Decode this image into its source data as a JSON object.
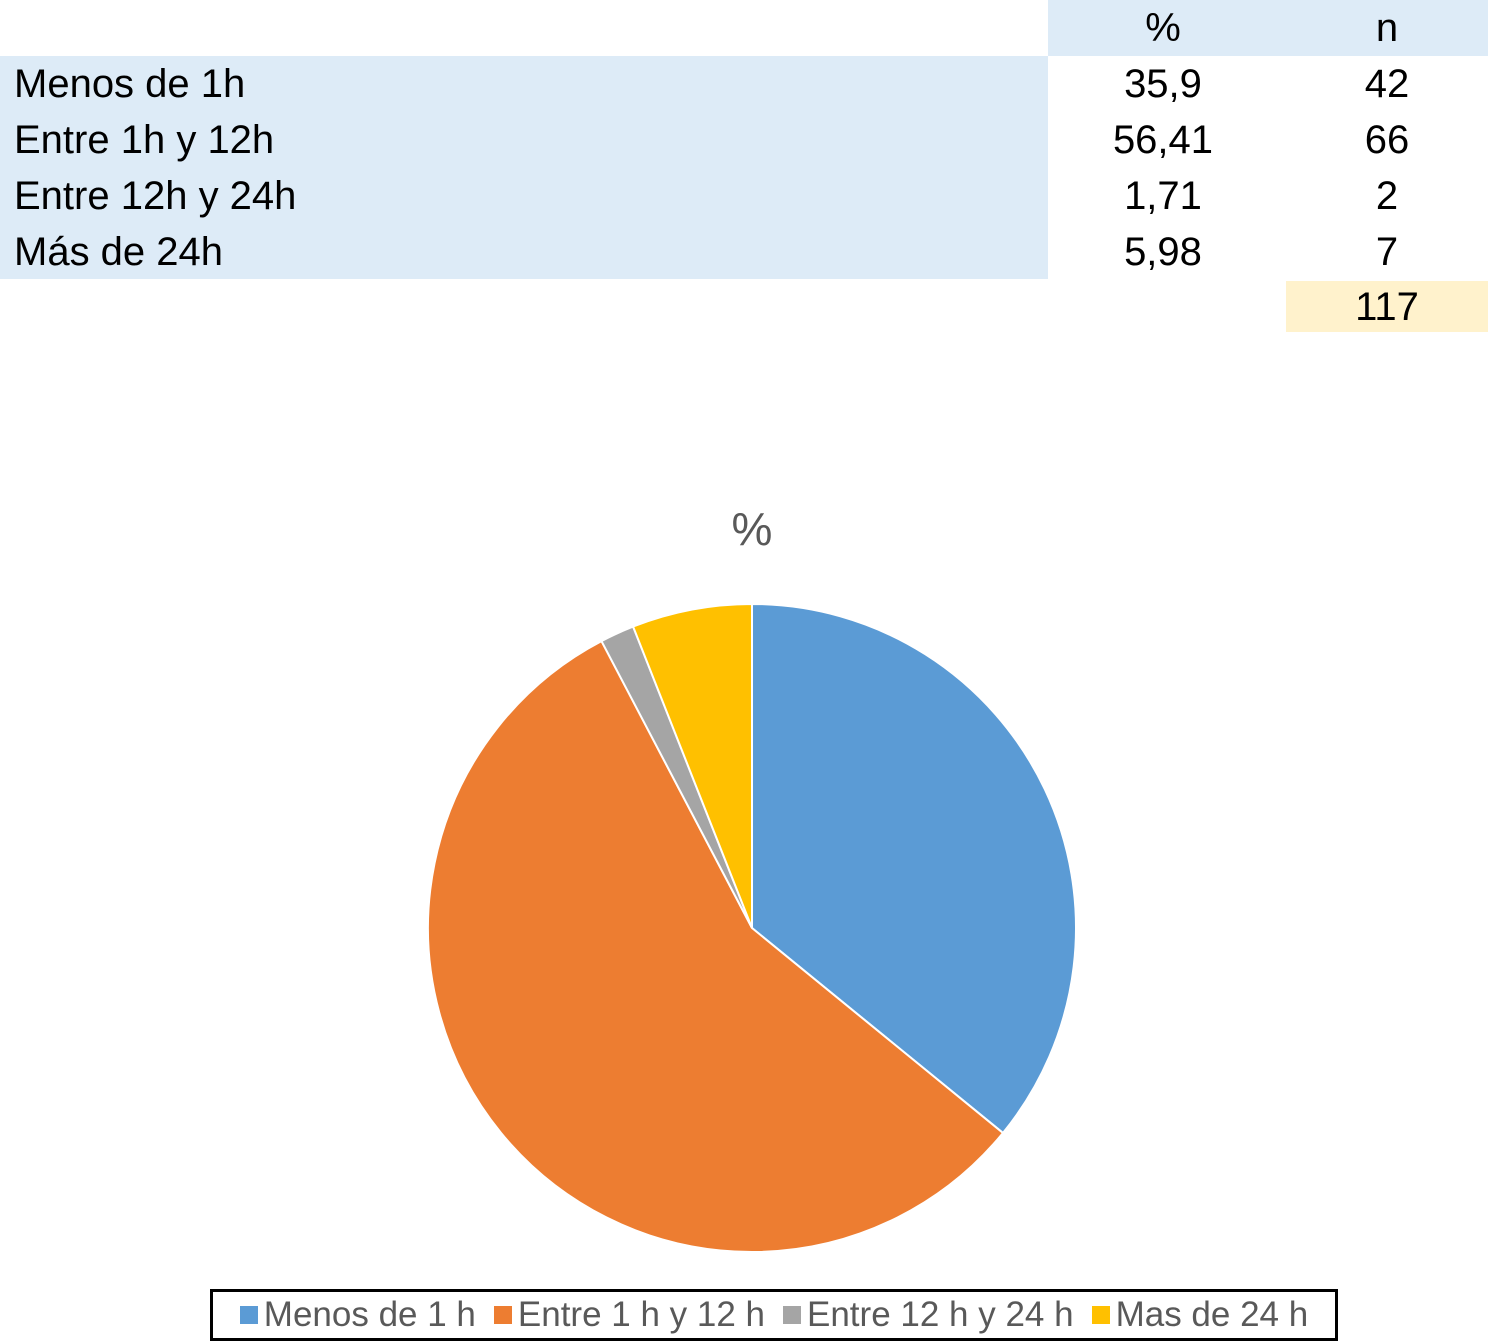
{
  "table": {
    "headers": [
      "%",
      "n"
    ],
    "rows": [
      {
        "label": "Menos de 1h",
        "pct": "35,9",
        "n": "42"
      },
      {
        "label": "Entre 1h y 12h",
        "pct": "56,41",
        "n": "66"
      },
      {
        "label": "Entre 12h y 24h",
        "pct": "1,71",
        "n": "2"
      },
      {
        "label": "Más de 24h",
        "pct": "5,98",
        "n": "7"
      }
    ],
    "total": "117",
    "colors": {
      "header_bg": "#ddebf7",
      "label_bg": "#ddebf7",
      "total_bg": "#fff2cc"
    }
  },
  "chart_data": {
    "type": "pie",
    "title": "%",
    "categories": [
      "Menos de 1 h",
      "Entre 1 h y 12 h",
      "Entre 12 h y 24 h",
      "Mas de 24 h"
    ],
    "values": [
      35.9,
      56.41,
      1.71,
      5.98
    ],
    "colors": [
      "#5b9bd5",
      "#ed7d31",
      "#a5a5a5",
      "#ffc000"
    ],
    "start_angle": "12 o'clock",
    "direction": "clockwise",
    "legend": "bottom"
  }
}
